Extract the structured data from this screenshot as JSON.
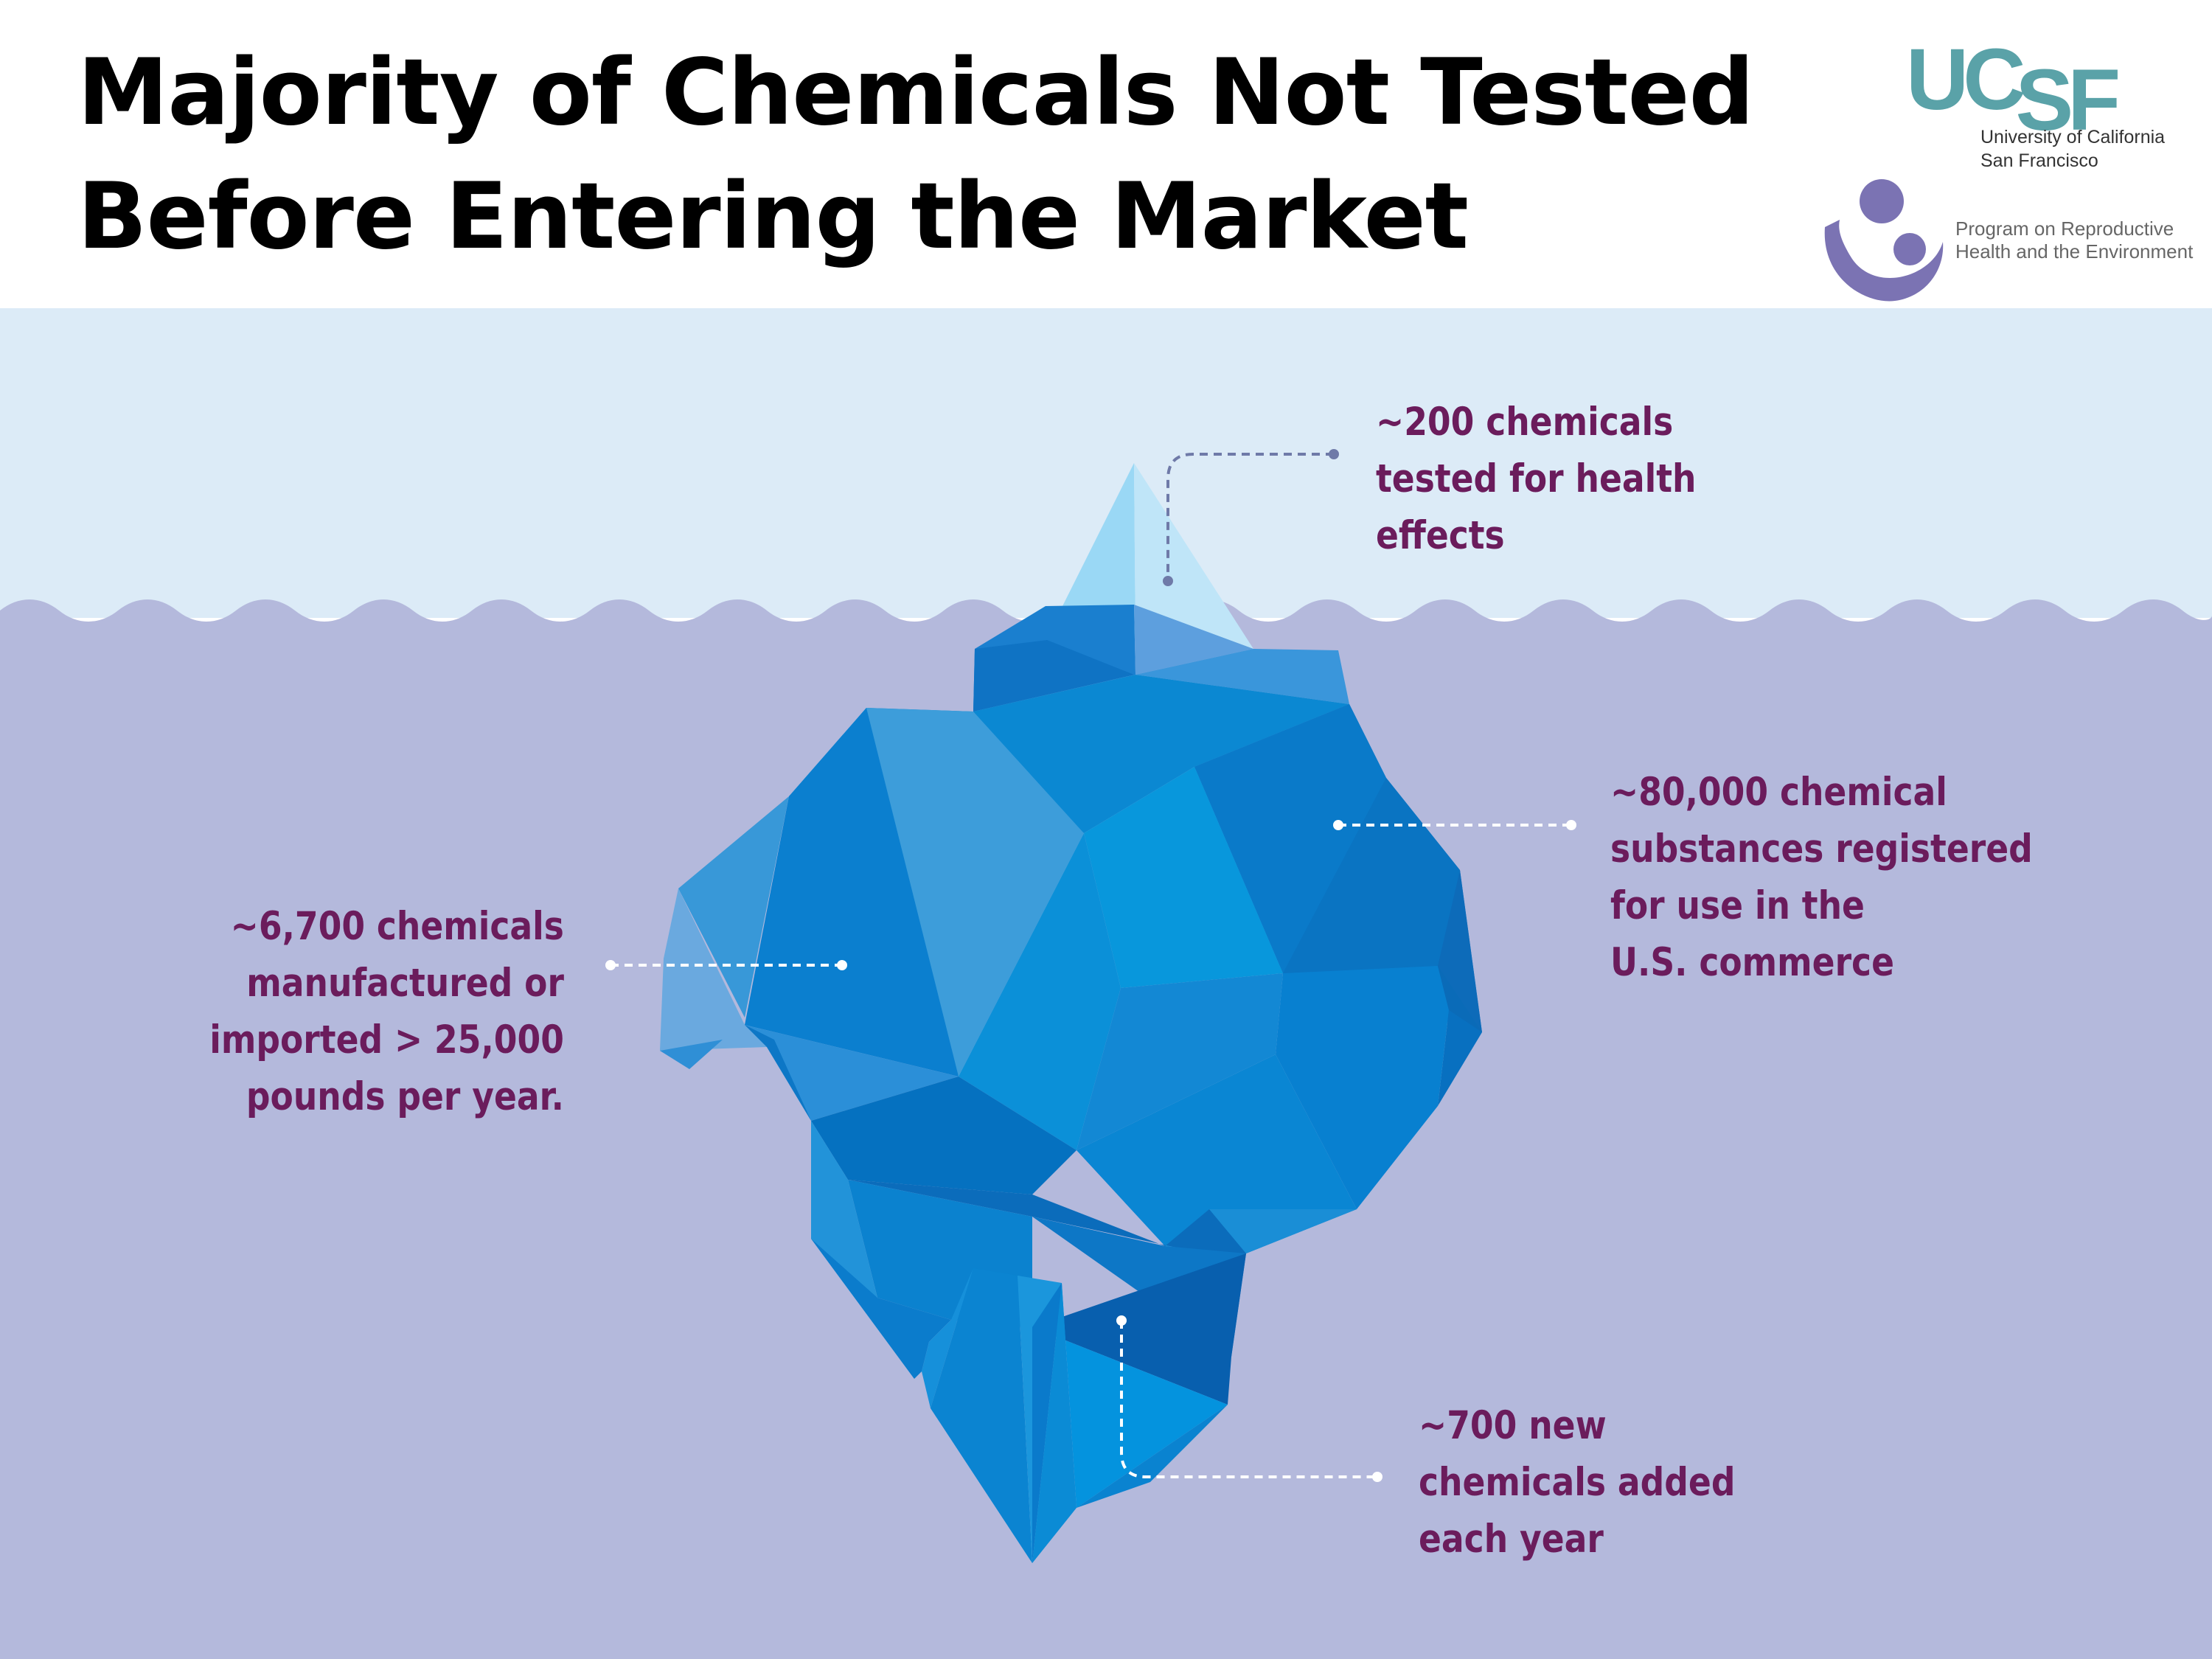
{
  "title": {
    "line1": "Majority of Chemicals Not Tested",
    "line2": "Before Entering the Market"
  },
  "logos": {
    "ucsf_mark": "UCSF",
    "ucsf_line1": "University of California",
    "ucsf_line2": "San Francisco",
    "program_line1": "Program on Reproductive",
    "program_line2": "Health and the Environment"
  },
  "callouts": {
    "tip": [
      "~200 chemicals",
      "tested for health",
      "effects"
    ],
    "registered": [
      "~80,000 chemical",
      "substances registered",
      "for use in the",
      "U.S. commerce"
    ],
    "high_volume": [
      "~6,700 chemicals",
      "manufactured or",
      "imported > 25,000",
      "pounds per year."
    ],
    "new": [
      "~700 new",
      "chemicals added",
      "each year"
    ]
  },
  "colors": {
    "sky": "#dcebf7",
    "water": "#b4b9dc",
    "label_text": "#6b1c5c",
    "ucsf_teal": "#5aa2a8",
    "program_purple": "#7b73b3",
    "leader_above": "#6f7aa8",
    "leader_below": "#ffffff"
  }
}
